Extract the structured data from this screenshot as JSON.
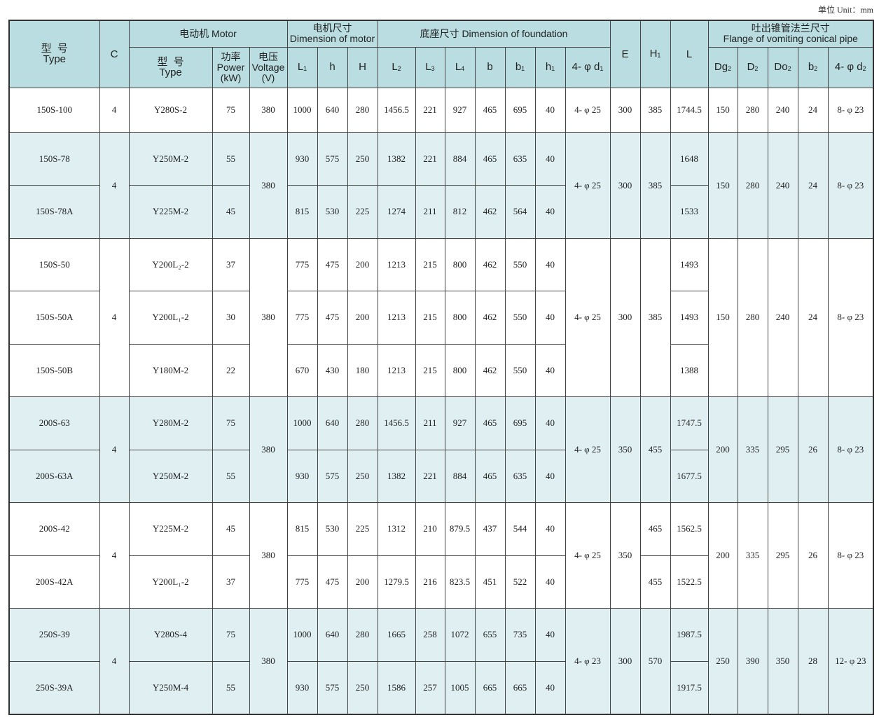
{
  "unit_label": "单位 Unit：mm",
  "header": {
    "type_cn": "型  号",
    "type_en": "Type",
    "c": "C",
    "motor": "电动机 Motor",
    "motor_type_cn": "型  号",
    "motor_type_en": "Type",
    "power_cn": "功率",
    "power_en": "Power",
    "power_unit": "(kW)",
    "voltage_cn": "电压",
    "voltage_en": "Voltage",
    "voltage_unit": "(V)",
    "dim_motor_cn": "电机尺寸",
    "dim_motor_en": "Dimension of motor",
    "foundation": "底座尺寸 Dimension of foundation",
    "flange_cn": "吐出锥管法兰尺寸",
    "flange_en": "Flange of vomiting conical pipe",
    "E": "E",
    "H1": {
      "t": "H",
      "s": "1"
    },
    "L": "L",
    "motor_dims": [
      {
        "t": "L",
        "s": "1"
      },
      {
        "t": "h",
        "s": ""
      },
      {
        "t": "H",
        "s": ""
      }
    ],
    "foundation_dims": [
      {
        "t": "L",
        "s": "2"
      },
      {
        "t": "L",
        "s": "3"
      },
      {
        "t": "L",
        "s": "4"
      },
      {
        "t": "b",
        "s": ""
      },
      {
        "t": "b",
        "s": "1"
      },
      {
        "t": "h",
        "s": "1"
      },
      {
        "t": "4- φ d",
        "s": "1"
      }
    ],
    "flange_dims": [
      {
        "t": "Dg",
        "s": "2"
      },
      {
        "t": "D",
        "s": "2"
      },
      {
        "t": "Do",
        "s": "2"
      },
      {
        "t": "b",
        "s": "2"
      },
      {
        "t": "4- φ d",
        "s": "2"
      }
    ]
  },
  "groups": [
    {
      "c": "4",
      "voltage": "380",
      "d1": "4- φ 25",
      "E": "300",
      "H1": [
        "385"
      ],
      "flange": [
        "150",
        "280",
        "240",
        "24",
        "8- φ 23"
      ],
      "rows": [
        {
          "type": "150S-100",
          "motor": "Y280S-2",
          "power": "75",
          "L1": "1000",
          "h": "640",
          "H": "280",
          "L2": "1456.5",
          "L3": "221",
          "L4": "927",
          "b": "465",
          "b1": "695",
          "h1": "40",
          "L": "1744.5"
        }
      ]
    },
    {
      "c": "4",
      "voltage": "380",
      "d1": "4- φ 25",
      "E": "300",
      "H1": [
        "385"
      ],
      "flange": [
        "150",
        "280",
        "240",
        "24",
        "8- φ 23"
      ],
      "rows": [
        {
          "type": "150S-78",
          "motor": "Y250M-2",
          "power": "55",
          "L1": "930",
          "h": "575",
          "H": "250",
          "L2": "1382",
          "L3": "221",
          "L4": "884",
          "b": "465",
          "b1": "635",
          "h1": "40",
          "L": "1648"
        },
        {
          "type": "150S-78A",
          "motor": "Y225M-2",
          "power": "45",
          "L1": "815",
          "h": "530",
          "H": "225",
          "L2": "1274",
          "L3": "211",
          "L4": "812",
          "b": "462",
          "b1": "564",
          "h1": "40",
          "L": "1533"
        }
      ]
    },
    {
      "c": "4",
      "voltage": "380",
      "d1": "4- φ 25",
      "E": "300",
      "H1": [
        "385"
      ],
      "flange": [
        "150",
        "280",
        "240",
        "24",
        "8- φ 23"
      ],
      "rows": [
        {
          "type": "150S-50",
          "motor": "Y200L₂-2",
          "power": "37",
          "L1": "775",
          "h": "475",
          "H": "200",
          "L2": "1213",
          "L3": "215",
          "L4": "800",
          "b": "462",
          "b1": "550",
          "h1": "40",
          "L": "1493"
        },
        {
          "type": "150S-50A",
          "motor": "Y200L₁-2",
          "power": "30",
          "L1": "775",
          "h": "475",
          "H": "200",
          "L2": "1213",
          "L3": "215",
          "L4": "800",
          "b": "462",
          "b1": "550",
          "h1": "40",
          "L": "1493"
        },
        {
          "type": "150S-50B",
          "motor": "Y180M-2",
          "power": "22",
          "L1": "670",
          "h": "430",
          "H": "180",
          "L2": "1213",
          "L3": "215",
          "L4": "800",
          "b": "462",
          "b1": "550",
          "h1": "40",
          "L": "1388"
        }
      ]
    },
    {
      "c": "4",
      "voltage": "380",
      "d1": "4- φ 25",
      "E": "350",
      "H1": [
        "455"
      ],
      "flange": [
        "200",
        "335",
        "295",
        "26",
        "8- φ 23"
      ],
      "rows": [
        {
          "type": "200S-63",
          "motor": "Y280M-2",
          "power": "75",
          "L1": "1000",
          "h": "640",
          "H": "280",
          "L2": "1456.5",
          "L3": "211",
          "L4": "927",
          "b": "465",
          "b1": "695",
          "h1": "40",
          "L": "1747.5"
        },
        {
          "type": "200S-63A",
          "motor": "Y250M-2",
          "power": "55",
          "L1": "930",
          "h": "575",
          "H": "250",
          "L2": "1382",
          "L3": "221",
          "L4": "884",
          "b": "465",
          "b1": "635",
          "h1": "40",
          "L": "1677.5"
        }
      ]
    },
    {
      "c": "4",
      "voltage": "380",
      "d1": "4- φ 25",
      "E": "350",
      "H1": [
        "465",
        "455"
      ],
      "flange": [
        "200",
        "335",
        "295",
        "26",
        "8- φ 23"
      ],
      "rows": [
        {
          "type": "200S-42",
          "motor": "Y225M-2",
          "power": "45",
          "L1": "815",
          "h": "530",
          "H": "225",
          "L2": "1312",
          "L3": "210",
          "L4": "879.5",
          "b": "437",
          "b1": "544",
          "h1": "40",
          "L": "1562.5"
        },
        {
          "type": "200S-42A",
          "motor": "Y200L₁-2",
          "power": "37",
          "L1": "775",
          "h": "475",
          "H": "200",
          "L2": "1279.5",
          "L3": "216",
          "L4": "823.5",
          "b": "451",
          "b1": "522",
          "h1": "40",
          "L": "1522.5"
        }
      ]
    },
    {
      "c": "4",
      "voltage": "380",
      "d1": "4- φ 23",
      "E": "300",
      "H1": [
        "570"
      ],
      "flange": [
        "250",
        "390",
        "350",
        "28",
        "12- φ 23"
      ],
      "rows": [
        {
          "type": "250S-39",
          "motor": "Y280S-4",
          "power": "75",
          "L1": "1000",
          "h": "640",
          "H": "280",
          "L2": "1665",
          "L3": "258",
          "L4": "1072",
          "b": "655",
          "b1": "735",
          "h1": "40",
          "L": "1987.5"
        },
        {
          "type": "250S-39A",
          "motor": "Y250M-4",
          "power": "55",
          "L1": "930",
          "h": "575",
          "H": "250",
          "L2": "1586",
          "L3": "257",
          "L4": "1005",
          "b": "665",
          "b1": "665",
          "h1": "40",
          "L": "1917.5"
        }
      ]
    }
  ]
}
